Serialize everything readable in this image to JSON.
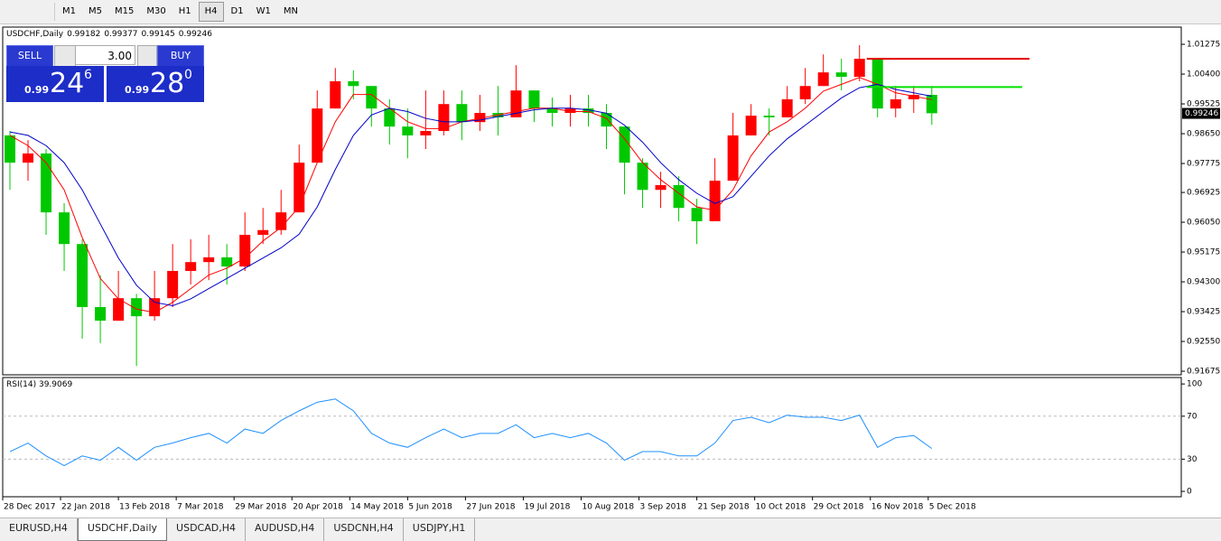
{
  "toolbar": {
    "timeframes": [
      "M1",
      "M5",
      "M15",
      "M30",
      "H1",
      "H4",
      "D1",
      "W1",
      "MN"
    ]
  },
  "trade_panel": {
    "sell": "SELL",
    "buy": "BUY",
    "lots": "3.00",
    "bid": {
      "big": "0.99",
      "pips": "24",
      "frac": "6"
    },
    "ask": {
      "big": "0.99",
      "pips": "28",
      "frac": "0"
    }
  },
  "chart_data": [
    {
      "type": "candlestick",
      "title": "USDCHF,Daily",
      "ohlc_header": [
        0.99182,
        0.99377,
        0.99145,
        0.99246
      ],
      "last_price": 0.99246,
      "up_color": "#ff0000",
      "down_color": "#00c800",
      "xlim": [
        0,
        326
      ],
      "xticks": [
        {
          "value": 0,
          "label": "28 Dec 2017"
        },
        {
          "value": 16,
          "label": "22 Jan 2018"
        },
        {
          "value": 32,
          "label": "13 Feb 2018"
        },
        {
          "value": 48,
          "label": "7 Mar 2018"
        },
        {
          "value": 64,
          "label": "29 Mar 2018"
        },
        {
          "value": 80,
          "label": "20 Apr 2018"
        },
        {
          "value": 96,
          "label": "14 May 2018"
        },
        {
          "value": 112,
          "label": "5 Jun 2018"
        },
        {
          "value": 128,
          "label": "27 Jun 2018"
        },
        {
          "value": 144,
          "label": "19 Jul 2018"
        },
        {
          "value": 160,
          "label": "10 Aug 2018"
        },
        {
          "value": 176,
          "label": "3 Sep 2018"
        },
        {
          "value": 192,
          "label": "21 Sep 2018"
        },
        {
          "value": 208,
          "label": "10 Oct 2018"
        },
        {
          "value": 224,
          "label": "29 Oct 2018"
        },
        {
          "value": 240,
          "label": "16 Nov 2018"
        },
        {
          "value": 256,
          "label": "5 Dec 2018"
        }
      ],
      "ylim": [
        0.9157,
        1.0178
      ],
      "yticks": [
        1.01275,
        {
          "value": 1.004,
          "label": "1.00400"
        },
        0.99525,
        {
          "value": 0.9865,
          "label": "0.98650"
        },
        0.97775,
        0.96925,
        {
          "value": 0.9605,
          "label": "0.96050"
        },
        0.95175,
        {
          "value": 0.943,
          "label": "0.94300"
        },
        0.93425,
        {
          "value": 0.9255,
          "label": "0.92550"
        },
        0.91675
      ],
      "x": [
        2,
        7,
        12,
        17,
        22,
        27,
        32,
        37,
        42,
        47,
        52,
        57,
        62,
        67,
        72,
        77,
        82,
        87,
        92,
        97,
        102,
        107,
        112,
        117,
        122,
        127,
        132,
        137,
        142,
        147,
        152,
        157,
        162,
        167,
        172,
        177,
        182,
        187,
        192,
        197,
        202,
        207,
        212,
        217,
        222,
        227,
        232,
        237,
        242,
        247,
        252,
        257
      ],
      "open": [
        0.986,
        0.978,
        0.9807,
        0.9634,
        0.9541,
        0.9356,
        0.9316,
        0.9382,
        0.9329,
        0.9382,
        0.9462,
        0.9488,
        0.9502,
        0.9475,
        0.9568,
        0.9582,
        0.9634,
        0.978,
        0.9939,
        1.0019,
        1.0005,
        0.9939,
        0.9886,
        0.986,
        0.9873,
        0.9952,
        0.9899,
        0.9926,
        0.9913,
        0.9992,
        0.9939,
        0.9926,
        0.9939,
        0.9926,
        0.9886,
        0.978,
        0.97,
        0.9714,
        0.9647,
        0.9608,
        0.9727,
        0.986,
        0.9918,
        0.9913,
        0.9966,
        1.0005,
        1.0045,
        1.0032,
        1.0085,
        0.9939,
        0.9966,
        0.9979
      ],
      "high": [
        0.9873,
        0.9846,
        0.982,
        0.9661,
        0.9555,
        0.9449,
        0.9462,
        0.9395,
        0.9462,
        0.9541,
        0.9555,
        0.9568,
        0.9541,
        0.9634,
        0.9647,
        0.97,
        0.9833,
        0.9992,
        1.0058,
        1.0051,
        1.0005,
        0.9966,
        0.9939,
        0.9992,
        0.9992,
        0.9992,
        0.9979,
        1.0005,
        1.0066,
        0.9992,
        0.9971,
        0.9979,
        0.9979,
        0.9952,
        0.9886,
        0.9793,
        0.9753,
        0.974,
        0.9674,
        0.9793,
        0.9926,
        0.9952,
        0.9939,
        1.0005,
        1.0058,
        1.0098,
        1.0085,
        1.0125,
        1.0085,
        1.0005,
        1.0005,
        1.0005
      ],
      "low": [
        0.97,
        0.9727,
        0.9568,
        0.9462,
        0.9263,
        0.925,
        0.9316,
        0.9183,
        0.9316,
        0.9356,
        0.9422,
        0.9435,
        0.9422,
        0.9462,
        0.9541,
        0.9568,
        0.9634,
        0.978,
        0.9939,
        0.9966,
        0.9886,
        0.9833,
        0.9793,
        0.982,
        0.986,
        0.9846,
        0.9873,
        0.986,
        0.9913,
        0.9899,
        0.9886,
        0.9886,
        0.9886,
        0.982,
        0.9687,
        0.9647,
        0.9647,
        0.9608,
        0.9541,
        0.9608,
        0.9727,
        0.986,
        0.986,
        0.9913,
        0.9952,
        1.0005,
        0.9992,
        1.0019,
        0.9913,
        0.9913,
        0.9926,
        0.9891
      ],
      "close": [
        0.978,
        0.9807,
        0.9634,
        0.9541,
        0.9356,
        0.9316,
        0.9382,
        0.9329,
        0.9382,
        0.9462,
        0.9488,
        0.9502,
        0.9475,
        0.9568,
        0.9582,
        0.9634,
        0.978,
        0.9939,
        1.0019,
        1.0005,
        0.9939,
        0.9886,
        0.986,
        0.9873,
        0.9952,
        0.9899,
        0.9926,
        0.9913,
        0.9992,
        0.9939,
        0.9926,
        0.9939,
        0.9926,
        0.9886,
        0.978,
        0.97,
        0.9714,
        0.9647,
        0.9608,
        0.9727,
        0.986,
        0.9918,
        0.9913,
        0.9966,
        1.0005,
        1.0045,
        1.0032,
        1.0085,
        0.9939,
        0.9966,
        0.9979,
        0.9925
      ],
      "ma": [
        {
          "color": "#ff0000",
          "values": [
            0.986,
            0.983,
            0.978,
            0.97,
            0.956,
            0.944,
            0.938,
            0.935,
            0.934,
            0.937,
            0.941,
            0.945,
            0.947,
            0.95,
            0.955,
            0.959,
            0.965,
            0.978,
            0.99,
            0.998,
            0.998,
            0.994,
            0.99,
            0.988,
            0.988,
            0.99,
            0.991,
            0.992,
            0.993,
            0.994,
            0.994,
            0.993,
            0.993,
            0.991,
            0.985,
            0.978,
            0.973,
            0.969,
            0.965,
            0.964,
            0.97,
            0.98,
            0.987,
            0.99,
            0.994,
            0.999,
            1.001,
            1.003,
            1.001,
            0.9985,
            0.9975,
            0.9965
          ]
        },
        {
          "color": "#0000c8",
          "values": [
            0.987,
            0.986,
            0.983,
            0.978,
            0.97,
            0.96,
            0.95,
            0.942,
            0.937,
            0.936,
            0.938,
            0.941,
            0.944,
            0.947,
            0.95,
            0.953,
            0.957,
            0.965,
            0.976,
            0.986,
            0.992,
            0.994,
            0.993,
            0.991,
            0.99,
            0.99,
            0.9905,
            0.9915,
            0.9925,
            0.9935,
            0.994,
            0.994,
            0.9935,
            0.9925,
            0.989,
            0.984,
            0.978,
            0.973,
            0.969,
            0.966,
            0.968,
            0.974,
            0.98,
            0.985,
            0.989,
            0.993,
            0.997,
            1.0,
            1.001,
            0.9995,
            0.9985,
            0.9975
          ]
        }
      ],
      "levels": [
        {
          "value": 1.0085,
          "color": "#e00000",
          "x": [
            239,
            284
          ]
        },
        {
          "value": 1.0002,
          "color": "#00e000",
          "x": [
            239,
            282
          ]
        }
      ]
    },
    {
      "type": "line",
      "title": "RSI(14)",
      "last": 39.9069,
      "color": "#1e90ff",
      "xlim": [
        0,
        326
      ],
      "ylim": [
        -5,
        106
      ],
      "yticks": [
        100,
        70,
        30,
        0
      ],
      "x": [
        2,
        7,
        12,
        17,
        22,
        27,
        32,
        37,
        42,
        47,
        52,
        57,
        62,
        67,
        72,
        77,
        82,
        87,
        92,
        97,
        102,
        107,
        112,
        117,
        122,
        127,
        132,
        137,
        142,
        147,
        152,
        157,
        162,
        167,
        172,
        177,
        182,
        187,
        192,
        197,
        202,
        207,
        212,
        217,
        222,
        227,
        232,
        237,
        242,
        247,
        252,
        257
      ],
      "values": [
        37,
        45,
        33,
        24,
        33,
        29,
        41,
        29,
        41,
        45,
        50,
        54,
        45,
        58,
        54,
        66,
        75,
        83,
        86,
        75,
        54,
        45,
        41,
        50,
        58,
        50,
        54,
        54,
        62,
        50,
        54,
        50,
        54,
        45,
        29,
        37,
        37,
        33,
        33,
        45,
        66,
        69,
        64,
        71,
        69,
        69,
        66,
        71,
        41,
        50,
        52,
        39.9069
      ]
    }
  ],
  "tabs": [
    "EURUSD,H4",
    "USDCHF,Daily",
    "USDCAD,H4",
    "AUDUSD,H4",
    "USDCNH,H4",
    "USDJPY,H1"
  ]
}
